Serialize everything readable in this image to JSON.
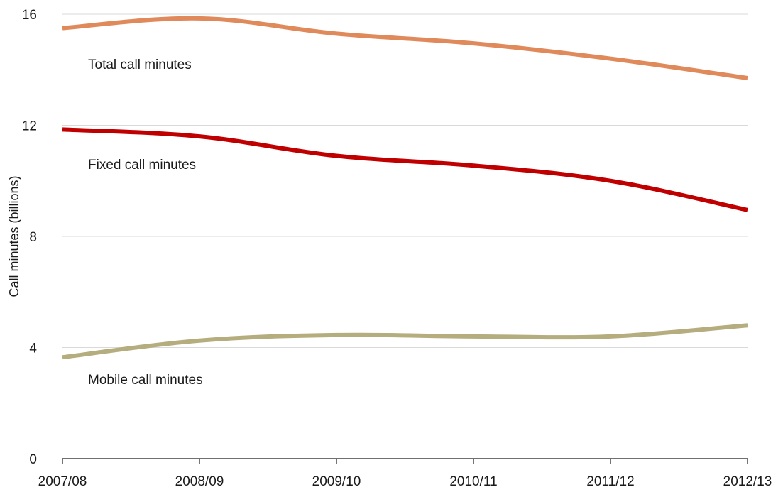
{
  "chart_data": {
    "type": "line",
    "title": "",
    "xlabel": "",
    "ylabel": "Call minutes (billions)",
    "categories": [
      "2007/08",
      "2008/09",
      "2009/10",
      "2010/11",
      "2011/12",
      "2012/13"
    ],
    "ylim": [
      0,
      16
    ],
    "yticks": [
      0,
      4,
      8,
      12,
      16
    ],
    "grid": true,
    "legend": "inline labels",
    "series": [
      {
        "name": "Total call minutes",
        "color": "#E08A5C",
        "values": [
          15.5,
          15.85,
          15.3,
          14.95,
          14.4,
          13.7
        ]
      },
      {
        "name": "Fixed call minutes",
        "color": "#C00000",
        "values": [
          11.85,
          11.6,
          10.9,
          10.55,
          10.0,
          8.95
        ]
      },
      {
        "name": "Mobile call minutes",
        "color": "#B5AD7E",
        "values": [
          3.65,
          4.25,
          4.45,
          4.4,
          4.4,
          4.8
        ]
      }
    ]
  }
}
